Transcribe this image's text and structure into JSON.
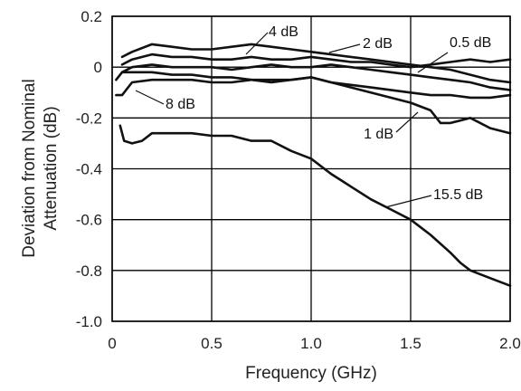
{
  "chart_data": {
    "type": "line",
    "xlabel": "Frequency (GHz)",
    "ylabel": [
      "Deviation from Nominal",
      "Attenuation (dB)"
    ],
    "xlim": [
      0,
      2.0
    ],
    "ylim": [
      -1.0,
      0.2
    ],
    "xticks": [
      "0",
      "0.5",
      "1.0",
      "1.5",
      "2.0"
    ],
    "yticks": [
      "0.2",
      "0",
      "-0.2",
      "-0.4",
      "-0.6",
      "-0.8",
      "-1.0"
    ],
    "grid": true,
    "series": [
      {
        "name": "4 dB",
        "x": [
          0.05,
          0.1,
          0.2,
          0.3,
          0.4,
          0.5,
          0.6,
          0.7,
          0.8,
          0.9,
          1.0,
          1.1,
          1.2,
          1.3,
          1.4,
          1.5,
          1.6,
          1.7,
          1.8,
          1.9,
          2.0
        ],
        "y": [
          0.04,
          0.06,
          0.09,
          0.08,
          0.07,
          0.07,
          0.08,
          0.09,
          0.08,
          0.07,
          0.06,
          0.05,
          0.04,
          0.03,
          0.02,
          0.01,
          0.0,
          -0.01,
          -0.03,
          -0.05,
          -0.06
        ]
      },
      {
        "name": "2 dB",
        "x": [
          0.05,
          0.1,
          0.2,
          0.3,
          0.4,
          0.5,
          0.6,
          0.7,
          0.8,
          0.9,
          1.0,
          1.1,
          1.2,
          1.3,
          1.4,
          1.5,
          1.6,
          1.7,
          1.8,
          1.9,
          2.0
        ],
        "y": [
          0.01,
          0.03,
          0.05,
          0.04,
          0.04,
          0.03,
          0.03,
          0.04,
          0.03,
          0.03,
          0.04,
          0.03,
          0.02,
          0.02,
          0.01,
          0.0,
          0.01,
          0.02,
          0.03,
          0.02,
          0.03
        ]
      },
      {
        "name": "0.5 dB",
        "x": [
          0.05,
          0.1,
          0.2,
          0.3,
          0.4,
          0.5,
          0.6,
          0.7,
          0.8,
          0.9,
          1.0,
          1.1,
          1.2,
          1.3,
          1.4,
          1.5,
          1.6,
          1.7,
          1.8,
          1.9,
          2.0
        ],
        "y": [
          -0.02,
          0.0,
          0.01,
          0.0,
          0.0,
          0.0,
          -0.01,
          0.0,
          0.01,
          0.0,
          0.0,
          0.01,
          0.0,
          -0.01,
          -0.02,
          -0.03,
          -0.04,
          -0.05,
          -0.06,
          -0.08,
          -0.09
        ]
      },
      {
        "name": "8 dB",
        "x": [
          0.02,
          0.05,
          0.1,
          0.2,
          0.3,
          0.4,
          0.5,
          0.6,
          0.7,
          0.8,
          0.9,
          1.0,
          1.1,
          1.2,
          1.3,
          1.4,
          1.5,
          1.6,
          1.7,
          1.8,
          1.9,
          2.0
        ],
        "y": [
          -0.11,
          -0.11,
          -0.06,
          -0.05,
          -0.05,
          -0.05,
          -0.06,
          -0.06,
          -0.05,
          -0.05,
          -0.05,
          -0.04,
          -0.06,
          -0.07,
          -0.08,
          -0.09,
          -0.1,
          -0.11,
          -0.11,
          -0.12,
          -0.12,
          -0.11
        ]
      },
      {
        "name": "1 dB",
        "x": [
          0.02,
          0.05,
          0.1,
          0.2,
          0.3,
          0.4,
          0.5,
          0.6,
          0.7,
          0.8,
          0.9,
          1.0,
          1.1,
          1.2,
          1.3,
          1.4,
          1.5,
          1.6,
          1.65,
          1.7,
          1.8,
          1.9,
          2.0
        ],
        "y": [
          -0.05,
          -0.02,
          -0.02,
          -0.02,
          -0.03,
          -0.03,
          -0.04,
          -0.04,
          -0.05,
          -0.06,
          -0.05,
          -0.04,
          -0.06,
          -0.08,
          -0.1,
          -0.12,
          -0.14,
          -0.17,
          -0.22,
          -0.22,
          -0.2,
          -0.24,
          -0.26
        ]
      },
      {
        "name": "15.5 dB",
        "x": [
          0.04,
          0.06,
          0.1,
          0.15,
          0.2,
          0.3,
          0.4,
          0.5,
          0.6,
          0.7,
          0.8,
          0.9,
          1.0,
          1.1,
          1.2,
          1.3,
          1.4,
          1.5,
          1.6,
          1.7,
          1.75,
          1.8,
          1.9,
          2.0
        ],
        "y": [
          -0.23,
          -0.29,
          -0.3,
          -0.29,
          -0.26,
          -0.26,
          -0.26,
          -0.27,
          -0.27,
          -0.29,
          -0.29,
          -0.33,
          -0.36,
          -0.42,
          -0.47,
          -0.52,
          -0.56,
          -0.6,
          -0.66,
          -0.73,
          -0.77,
          -0.8,
          -0.83,
          -0.86
        ]
      }
    ]
  }
}
